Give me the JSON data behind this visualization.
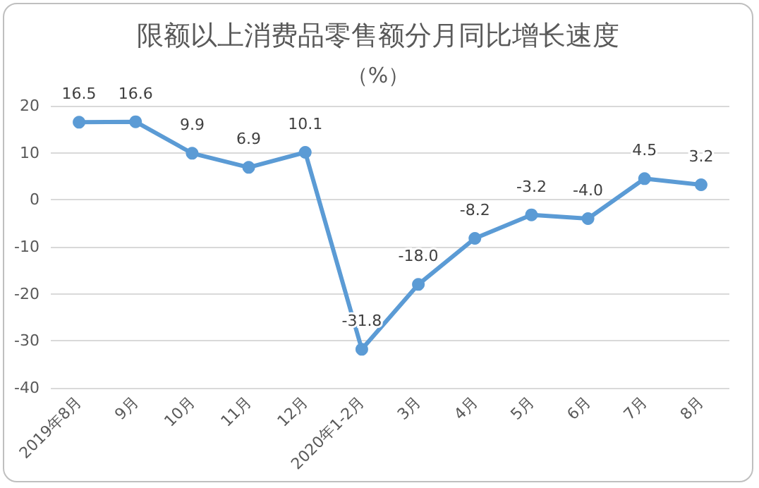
{
  "chart_data": {
    "type": "line",
    "title": "限额以上消费品零售额分月同比增长速度",
    "subtitle": "（%）",
    "categories": [
      "2019年8月",
      "9月",
      "10月",
      "11月",
      "12月",
      "2020年1-2月",
      "3月",
      "4月",
      "5月",
      "6月",
      "7月",
      "8月"
    ],
    "series": [
      {
        "color": "#5b9bd5",
        "values": [
          16.5,
          16.6,
          9.9,
          6.9,
          10.1,
          -31.8,
          -18.0,
          -8.2,
          -3.2,
          -4.0,
          4.5,
          3.2
        ],
        "value_labels": [
          "16.5",
          "16.6",
          "9.9",
          "6.9",
          "10.1",
          "-31.8",
          "-18.0",
          "-8.2",
          "-3.2",
          "-4.0",
          "4.5",
          "3.2"
        ]
      }
    ],
    "ylim": [
      -40,
      20
    ],
    "yticks": [
      -40,
      -30,
      -20,
      -10,
      0,
      10,
      20
    ],
    "grid": "y",
    "marker": "circle",
    "line_style": "solid"
  }
}
